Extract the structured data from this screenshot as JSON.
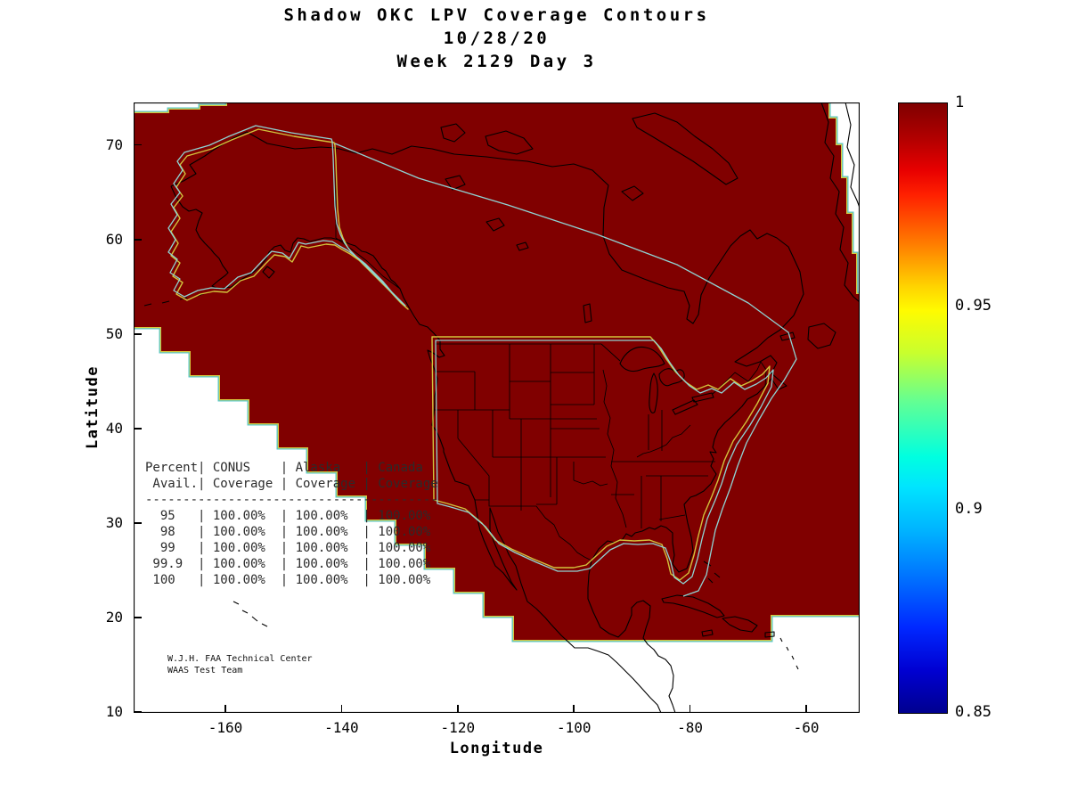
{
  "figure": {
    "title_lines": [
      "Shadow OKC LPV Coverage Contours",
      "10/28/20",
      "Week 2129 Day 3"
    ],
    "xlabel": "Longitude",
    "ylabel": "Latitude",
    "table_lines": [
      "Percent| CONUS    | Alaska   | Canada",
      " Avail.| Coverage | Coverage | Coverage",
      "---------------------------------------",
      "  95   | 100.00%  | 100.00%  | 100.00%",
      "  98   | 100.00%  | 100.00%  | 100.00%",
      "  99   | 100.00%  | 100.00%  | 100.00%",
      " 99.9  | 100.00%  | 100.00%  | 100.00%",
      " 100   | 100.00%  | 100.00%  | 100.00%"
    ],
    "credit_lines": [
      "W.J.H. FAA Technical Center",
      "WAAS Test Team"
    ]
  },
  "chart_data": {
    "type": "heatmap",
    "title": "Shadow OKC LPV Coverage Contours",
    "date": "10/28/20",
    "gps_week_day": "Week 2129 Day 3",
    "xlabel": "Longitude",
    "ylabel": "Latitude",
    "xlim": [
      -175.8,
      -50.8
    ],
    "ylim": [
      9.9,
      74.5
    ],
    "xticks": [
      -160,
      -140,
      -120,
      -100,
      -80,
      -60
    ],
    "yticks": [
      10,
      20,
      30,
      40,
      50,
      60,
      70
    ],
    "grid": false,
    "legend": "none",
    "colorbar": {
      "position": "right",
      "min": 0.85,
      "max": 1,
      "ticks": [
        1,
        0.95,
        0.9,
        0.85
      ],
      "colormap": "jet",
      "top_color": "#800000",
      "bottom_color": "#00008f"
    },
    "fill_value": 1.0,
    "fill_color": "#800000",
    "description": "LPV coverage availability contours over North America; the entire plotted WAAS service volume is at availability 1.0 (dark red). Yellow contour outlines CONUS and Alaska regions; cyan contour outlines Canada/secondary region.",
    "contour_line_colors": {
      "region_boundary_yellow": "#d2c23c",
      "region_boundary_cyan": "#8fd4d4"
    },
    "coverage_table": {
      "columns": [
        "Percent Avail.",
        "CONUS Coverage",
        "Alaska Coverage",
        "Canada Coverage"
      ],
      "rows": [
        [
          "95",
          "100.00%",
          "100.00%",
          "100.00%"
        ],
        [
          "98",
          "100.00%",
          "100.00%",
          "100.00%"
        ],
        [
          "99",
          "100.00%",
          "100.00%",
          "100.00%"
        ],
        [
          "99.9",
          "100.00%",
          "100.00%",
          "100.00%"
        ],
        [
          "100",
          "100.00%",
          "100.00%",
          "100.00%"
        ]
      ]
    },
    "credit": [
      "W.J.H. FAA Technical Center",
      "WAAS Test Team"
    ]
  }
}
